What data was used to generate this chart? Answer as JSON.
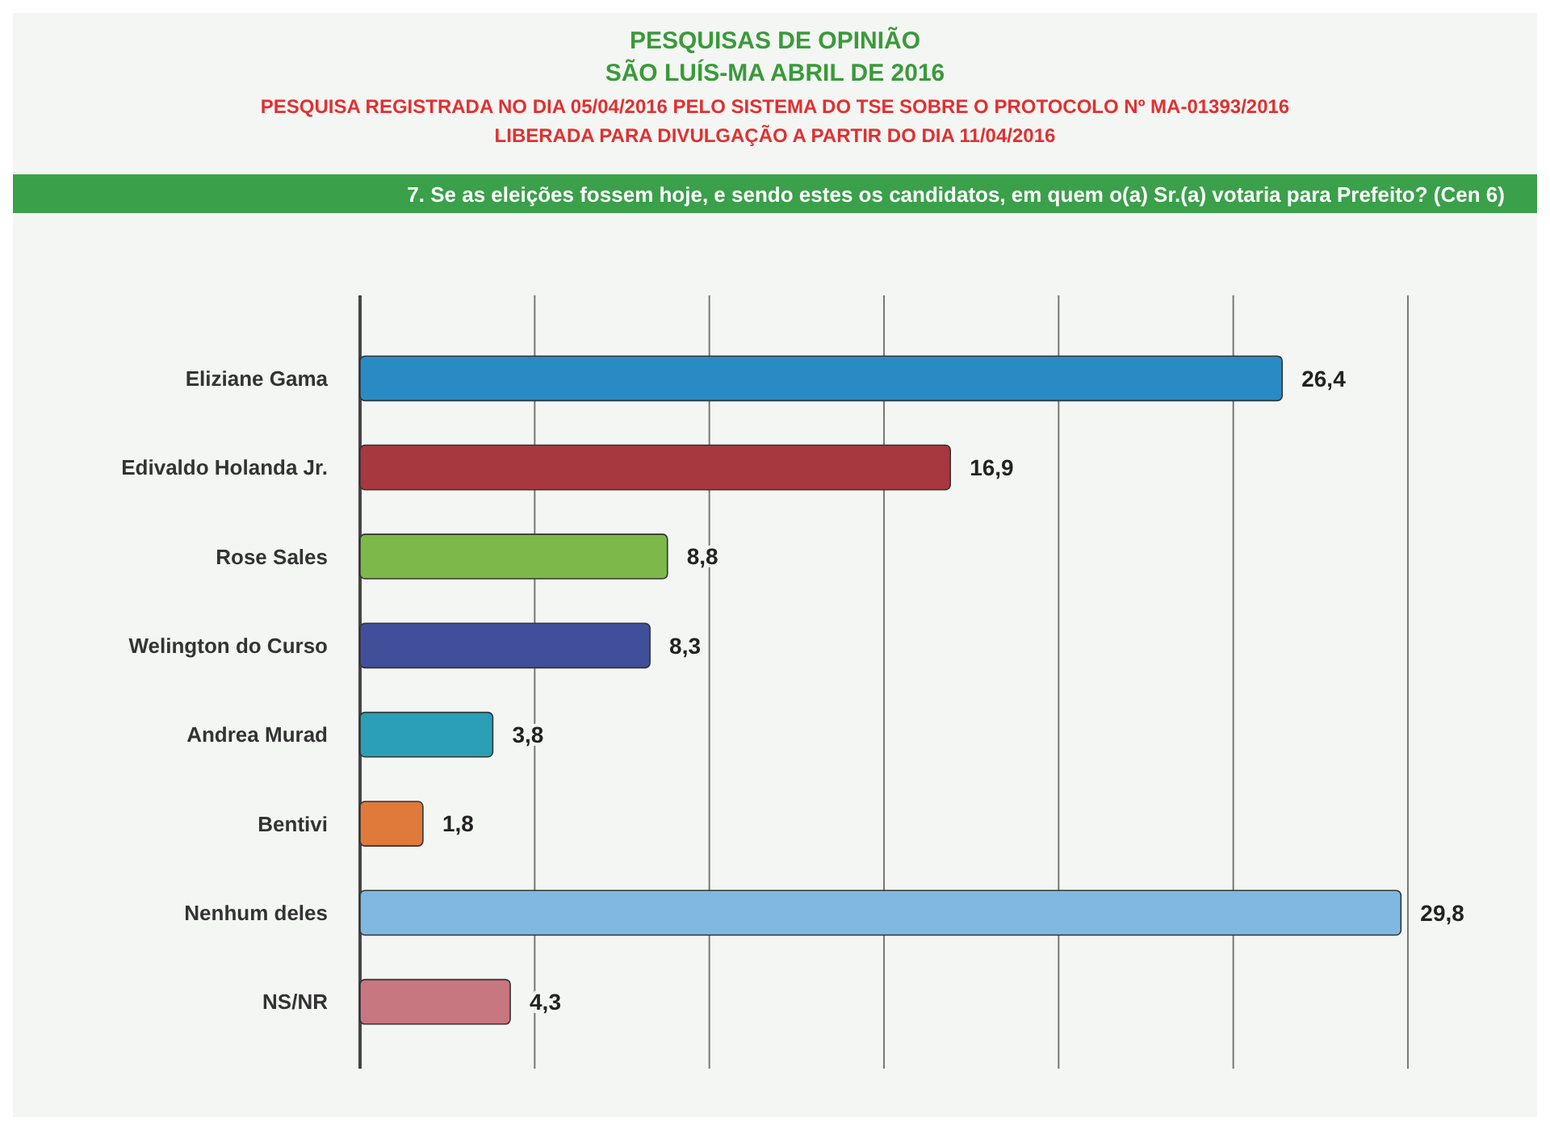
{
  "chart_data": {
    "type": "bar",
    "orientation": "horizontal",
    "title": "PESQUISAS DE OPINIÃO",
    "subtitle": "SÃO LUÍS-MA ABRIL DE 2016",
    "annotations": [
      "PESQUISA REGISTRADA NO DIA 05/04/2016 PELO SISTEMA DO TSE SOBRE O PROTOCOLO Nº MA-01393/2016",
      "LIBERADA PARA DIVULGAÇÃO A PARTIR DO DIA 11/04/2016",
      "7. Se as eleições fossem hoje, e sendo estes os candidatos, em quem o(a) Sr.(a) votaria para Prefeito? (Cen 6)"
    ],
    "categories": [
      "Eliziane Gama",
      "Edivaldo Holanda Jr.",
      "Rose Sales",
      "Welington do Curso",
      "Andrea Murad",
      "Bentivi",
      "Nenhum deles",
      "NS/NR"
    ],
    "values": [
      26.4,
      16.9,
      8.8,
      8.3,
      3.8,
      1.8,
      29.8,
      4.3
    ],
    "value_labels": [
      "26,4",
      "16,9",
      "8,8",
      "8,3",
      "3,8",
      "1,8",
      "29,8",
      "4,3"
    ],
    "colors": [
      "#2a8bc4",
      "#a8383f",
      "#7cb84a",
      "#3f4f9a",
      "#2a9fb5",
      "#e07a3a",
      "#7fb8e0",
      "#c7777f"
    ],
    "xlim": [
      0,
      30
    ],
    "xticks": [
      {
        "value": 0,
        "label": null
      },
      {
        "value": 5,
        "label": null
      },
      {
        "value": 10,
        "label": null
      },
      {
        "value": 15,
        "label": null
      },
      {
        "value": 20,
        "label": null
      },
      {
        "value": 25,
        "label": null
      },
      {
        "value": 30,
        "label": null
      }
    ],
    "grid": "x"
  }
}
